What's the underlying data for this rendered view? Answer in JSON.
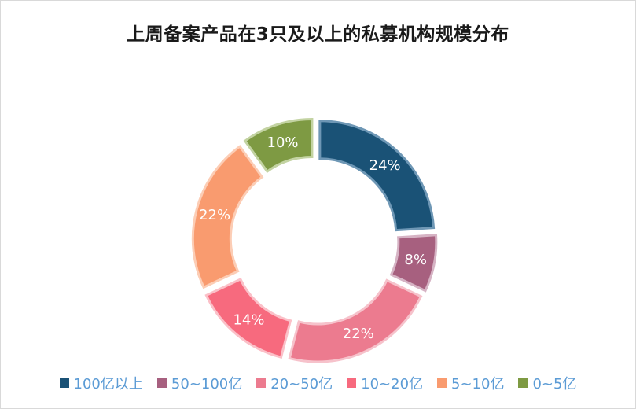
{
  "chart_data": {
    "type": "pie",
    "title": "上周备案产品在3只及以上的私募机构规模分布",
    "categories": [
      "100亿以上",
      "50~100亿",
      "20~50亿",
      "10~20亿",
      "5~10亿",
      "0~5亿"
    ],
    "values": [
      24,
      8,
      22,
      14,
      22,
      10
    ],
    "data_labels": [
      "24%",
      "8%",
      "22%",
      "14%",
      "22%",
      "10%"
    ],
    "colors": [
      "#1a5276",
      "#a7607f",
      "#ec7b8f",
      "#f76a7e",
      "#f99b6f",
      "#7e9a43"
    ],
    "border_colors": [
      "#6e97b5",
      "#d6b3c4",
      "#f6c2cb",
      "#fbc0c8",
      "#fccdb5",
      "#c3d3a2"
    ],
    "donut": true,
    "legend_position": "bottom"
  }
}
